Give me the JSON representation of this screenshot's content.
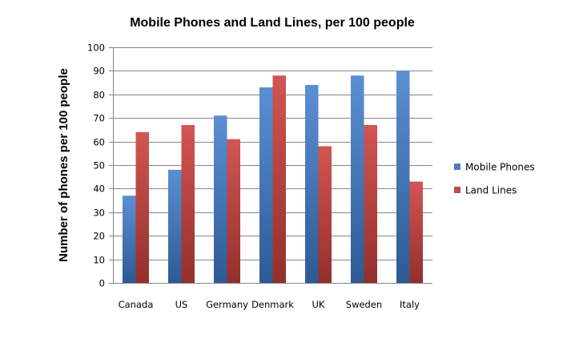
{
  "chart_data": {
    "type": "bar",
    "title": "Mobile Phones and Land Lines, per 100 people",
    "xlabel": "",
    "ylabel": "Number of phones per 100 people",
    "categories": [
      "Canada",
      "US",
      "Germany",
      "Denmark",
      "UK",
      "Sweden",
      "Italy"
    ],
    "series": [
      {
        "name": "Mobile Phones",
        "color": "#4a7ebb",
        "values": [
          37,
          48,
          71,
          83,
          84,
          88,
          90
        ]
      },
      {
        "name": "Land Lines",
        "color": "#be4b48",
        "values": [
          64,
          67,
          61,
          88,
          58,
          67,
          43
        ]
      }
    ],
    "ylim": [
      0,
      100
    ],
    "yticks": [
      0,
      10,
      20,
      30,
      40,
      50,
      60,
      70,
      80,
      90,
      100
    ],
    "grid": true,
    "legend_position": "right"
  }
}
